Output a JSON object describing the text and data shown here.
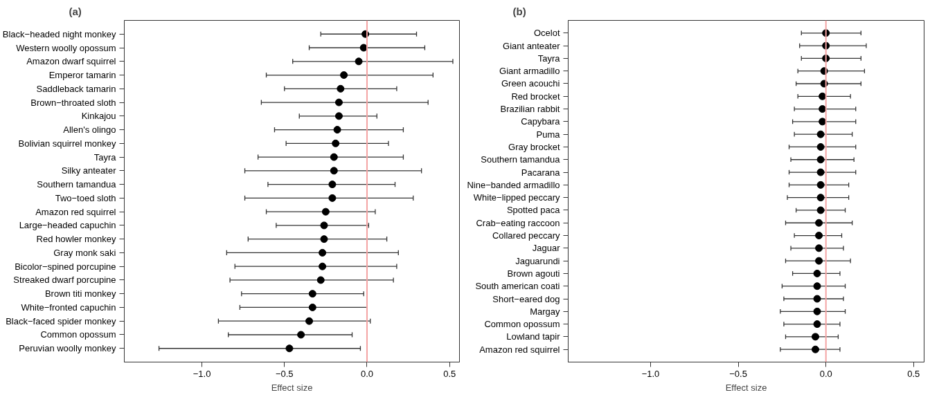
{
  "chart_data": [
    {
      "type": "scatter",
      "orientation": "horizontal",
      "title": "(a)",
      "xlabel": "Effect size",
      "marker": "circle",
      "grid": false,
      "color": "#000000",
      "categories": [
        "Black−headed night monkey",
        "Western woolly opossum",
        "Amazon dwarf squirrel",
        "Emperor tamarin",
        "Saddleback tamarin",
        "Brown−throated sloth",
        "Kinkajou",
        "Allen's olingo",
        "Bolivian squirrel monkey",
        "Tayra",
        "Silky anteater",
        "Southern tamandua",
        "Two−toed sloth",
        "Amazon red squirrel",
        "Large−headed capuchin",
        "Red howler monkey",
        "Gray monk saki",
        "Bicolor−spined porcupine",
        "Streaked dwarf porcupine",
        "Brown titi monkey",
        "White−fronted capuchin",
        "Black−faced spider monkey",
        "Common opossum",
        "Peruvian woolly monkey"
      ],
      "values": [
        -0.01,
        -0.02,
        -0.05,
        -0.14,
        -0.16,
        -0.17,
        -0.17,
        -0.18,
        -0.19,
        -0.2,
        -0.2,
        -0.21,
        -0.21,
        -0.25,
        -0.26,
        -0.26,
        -0.27,
        -0.27,
        -0.28,
        -0.33,
        -0.33,
        -0.35,
        -0.4,
        -0.47
      ],
      "errors": [
        [
          -0.28,
          0.3
        ],
        [
          -0.35,
          0.35
        ],
        [
          -0.45,
          0.52
        ],
        [
          -0.61,
          0.4
        ],
        [
          -0.5,
          0.18
        ],
        [
          -0.64,
          0.37
        ],
        [
          -0.41,
          0.06
        ],
        [
          -0.56,
          0.22
        ],
        [
          -0.49,
          0.13
        ],
        [
          -0.66,
          0.22
        ],
        [
          -0.74,
          0.33
        ],
        [
          -0.6,
          0.17
        ],
        [
          -0.74,
          0.28
        ],
        [
          -0.61,
          0.05
        ],
        [
          -0.55,
          0.01
        ],
        [
          -0.72,
          0.12
        ],
        [
          -0.85,
          0.19
        ],
        [
          -0.8,
          0.18
        ],
        [
          -0.83,
          0.16
        ],
        [
          -0.76,
          -0.02
        ],
        [
          -0.77,
          0.0
        ],
        [
          -0.9,
          0.02
        ],
        [
          -0.84,
          -0.09
        ],
        [
          -1.26,
          -0.04
        ]
      ],
      "xlim": [
        -1.47,
        0.56
      ],
      "xticks": [
        {
          "value": -1.0,
          "label": "−1.0"
        },
        {
          "value": -0.5,
          "label": "−0.5"
        },
        {
          "value": 0.0,
          "label": "0.0"
        },
        {
          "value": 0.5,
          "label": "0.5"
        }
      ],
      "ref_lines": [
        {
          "axis": "x",
          "value": 0,
          "color": "#f4a4a4"
        }
      ]
    },
    {
      "type": "scatter",
      "orientation": "horizontal",
      "title": "(b)",
      "xlabel": "Effect size",
      "marker": "circle",
      "grid": false,
      "color": "#000000",
      "categories": [
        "Ocelot",
        "Giant anteater",
        "Tayra",
        "Giant armadillo",
        "Green acouchi",
        "Red brocket",
        "Brazilian rabbit",
        "Capybara",
        "Puma",
        "Gray brocket",
        "Southern tamandua",
        "Pacarana",
        "Nine−banded armadillo",
        "White−lipped peccary",
        "Spotted paca",
        "Crab−eating raccoon",
        "Collared peccary",
        "Jaguar",
        "Jaguarundi",
        "Brown agouti",
        "South american coati",
        "Short−eared dog",
        "Margay",
        "Common opossum",
        "Lowland tapir",
        "Amazon red squirrel"
      ],
      "values": [
        0.0,
        0.0,
        0.0,
        -0.01,
        -0.01,
        -0.02,
        -0.02,
        -0.02,
        -0.03,
        -0.03,
        -0.03,
        -0.03,
        -0.03,
        -0.03,
        -0.03,
        -0.04,
        -0.04,
        -0.04,
        -0.04,
        -0.05,
        -0.05,
        -0.05,
        -0.05,
        -0.05,
        -0.06,
        -0.06
      ],
      "errors": [
        [
          -0.14,
          0.2
        ],
        [
          -0.15,
          0.23
        ],
        [
          -0.14,
          0.2
        ],
        [
          -0.16,
          0.22
        ],
        [
          -0.17,
          0.2
        ],
        [
          -0.16,
          0.14
        ],
        [
          -0.18,
          0.17
        ],
        [
          -0.19,
          0.17
        ],
        [
          -0.18,
          0.15
        ],
        [
          -0.21,
          0.17
        ],
        [
          -0.2,
          0.16
        ],
        [
          -0.21,
          0.17
        ],
        [
          -0.21,
          0.13
        ],
        [
          -0.22,
          0.13
        ],
        [
          -0.17,
          0.11
        ],
        [
          -0.23,
          0.15
        ],
        [
          -0.18,
          0.09
        ],
        [
          -0.2,
          0.1
        ],
        [
          -0.23,
          0.14
        ],
        [
          -0.19,
          0.08
        ],
        [
          -0.25,
          0.11
        ],
        [
          -0.24,
          0.1
        ],
        [
          -0.26,
          0.11
        ],
        [
          -0.24,
          0.08
        ],
        [
          -0.23,
          0.07
        ],
        [
          -0.26,
          0.08
        ]
      ],
      "xlim": [
        -1.47,
        0.56
      ],
      "xticks": [
        {
          "value": -1.0,
          "label": "−1.0"
        },
        {
          "value": -0.5,
          "label": "−0.5"
        },
        {
          "value": 0.0,
          "label": "0.0"
        },
        {
          "value": 0.5,
          "label": "0.5"
        }
      ],
      "ref_lines": [
        {
          "axis": "x",
          "value": 0,
          "color": "#f4a4a4"
        }
      ]
    }
  ]
}
